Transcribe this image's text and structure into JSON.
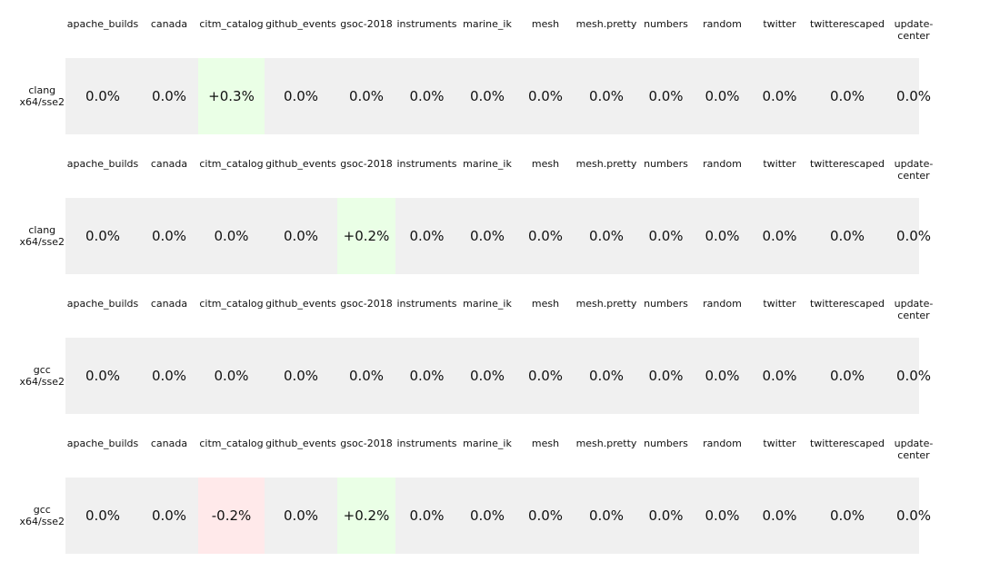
{
  "chart_data": {
    "type": "table",
    "columns": [
      "apache_builds",
      "canada",
      "citm_catalog",
      "github_events",
      "gsoc-2018",
      "instruments",
      "marine_ik",
      "mesh",
      "mesh.pretty",
      "numbers",
      "random",
      "twitter",
      "twitterescaped",
      "update-center"
    ],
    "rows": [
      {
        "label": "clang\nx64/sse2",
        "values": [
          "0.0%",
          "0.0%",
          "+0.3%",
          "0.0%",
          "0.0%",
          "0.0%",
          "0.0%",
          "0.0%",
          "0.0%",
          "0.0%",
          "0.0%",
          "0.0%",
          "0.0%",
          "0.0%"
        ],
        "numeric": [
          0.0,
          0.0,
          0.3,
          0.0,
          0.0,
          0.0,
          0.0,
          0.0,
          0.0,
          0.0,
          0.0,
          0.0,
          0.0,
          0.0
        ]
      },
      {
        "label": "clang\nx64/sse2",
        "values": [
          "0.0%",
          "0.0%",
          "0.0%",
          "0.0%",
          "+0.2%",
          "0.0%",
          "0.0%",
          "0.0%",
          "0.0%",
          "0.0%",
          "0.0%",
          "0.0%",
          "0.0%",
          "0.0%"
        ],
        "numeric": [
          0.0,
          0.0,
          0.0,
          0.0,
          0.2,
          0.0,
          0.0,
          0.0,
          0.0,
          0.0,
          0.0,
          0.0,
          0.0,
          0.0
        ]
      },
      {
        "label": "gcc\nx64/sse2",
        "values": [
          "0.0%",
          "0.0%",
          "0.0%",
          "0.0%",
          "0.0%",
          "0.0%",
          "0.0%",
          "0.0%",
          "0.0%",
          "0.0%",
          "0.0%",
          "0.0%",
          "0.0%",
          "0.0%"
        ],
        "numeric": [
          0.0,
          0.0,
          0.0,
          0.0,
          0.0,
          0.0,
          0.0,
          0.0,
          0.0,
          0.0,
          0.0,
          0.0,
          0.0,
          0.0
        ]
      },
      {
        "label": "gcc\nx64/sse2",
        "values": [
          "0.0%",
          "0.0%",
          "-0.2%",
          "0.0%",
          "+0.2%",
          "0.0%",
          "0.0%",
          "0.0%",
          "0.0%",
          "0.0%",
          "0.0%",
          "0.0%",
          "0.0%",
          "0.0%"
        ],
        "numeric": [
          0.0,
          0.0,
          -0.2,
          0.0,
          0.2,
          0.0,
          0.0,
          0.0,
          0.0,
          0.0,
          0.0,
          0.0,
          0.0,
          0.0
        ]
      }
    ],
    "colors": {
      "strip_background": "#f0f0f0",
      "positive": "#eaffe6",
      "negative": "#ffe9ea",
      "text": "#111111"
    }
  }
}
